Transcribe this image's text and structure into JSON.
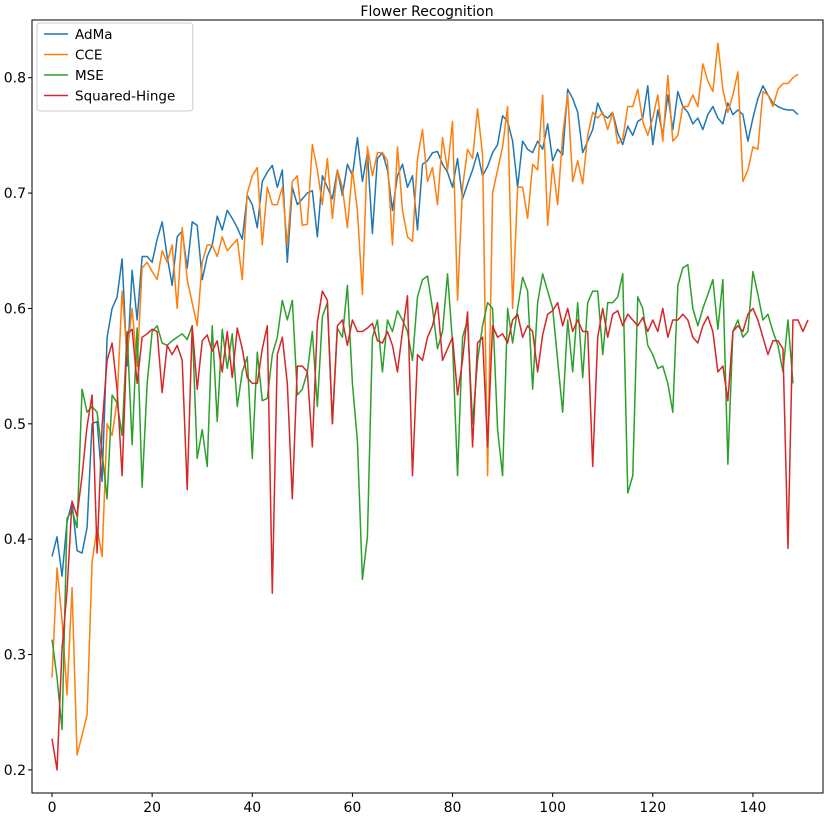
{
  "chart_data": {
    "type": "line",
    "title": "Flower Recognition",
    "xlabel": "",
    "ylabel": "",
    "xlim": [
      -4,
      154
    ],
    "ylim": [
      0.18,
      0.85
    ],
    "xticks": [
      0,
      20,
      40,
      60,
      80,
      100,
      120,
      140
    ],
    "yticks": [
      0.2,
      0.3,
      0.4,
      0.5,
      0.6,
      0.7,
      0.8
    ],
    "xtick_labels": [
      "0",
      "20",
      "40",
      "60",
      "80",
      "100",
      "120",
      "140"
    ],
    "ytick_labels": [
      "0.2",
      "0.3",
      "0.4",
      "0.5",
      "0.6",
      "0.7",
      "0.8"
    ],
    "grid": false,
    "legend_position": "top-left",
    "series": [
      {
        "name": "AdMa",
        "color": "#1f77b4",
        "values": [
          0.385,
          0.402,
          0.368,
          0.415,
          0.432,
          0.39,
          0.388,
          0.41,
          0.5,
          0.502,
          0.45,
          0.575,
          0.6,
          0.61,
          0.643,
          0.55,
          0.633,
          0.59,
          0.645,
          0.645,
          0.64,
          0.66,
          0.675,
          0.645,
          0.62,
          0.662,
          0.667,
          0.635,
          0.675,
          0.672,
          0.625,
          0.645,
          0.655,
          0.68,
          0.668,
          0.685,
          0.678,
          0.67,
          0.66,
          0.698,
          0.69,
          0.67,
          0.71,
          0.718,
          0.724,
          0.705,
          0.72,
          0.64,
          0.705,
          0.69,
          0.695,
          0.7,
          0.702,
          0.662,
          0.715,
          0.705,
          0.695,
          0.72,
          0.698,
          0.725,
          0.715,
          0.748,
          0.71,
          0.735,
          0.665,
          0.73,
          0.735,
          0.72,
          0.685,
          0.715,
          0.725,
          0.705,
          0.715,
          0.668,
          0.725,
          0.728,
          0.735,
          0.736,
          0.725,
          0.718,
          0.705,
          0.73,
          0.695,
          0.708,
          0.72,
          0.735,
          0.715,
          0.723,
          0.735,
          0.742,
          0.767,
          0.762,
          0.745,
          0.705,
          0.745,
          0.738,
          0.735,
          0.745,
          0.738,
          0.76,
          0.728,
          0.738,
          0.733,
          0.79,
          0.782,
          0.77,
          0.735,
          0.745,
          0.755,
          0.778,
          0.768,
          0.765,
          0.77,
          0.752,
          0.742,
          0.758,
          0.75,
          0.762,
          0.765,
          0.793,
          0.742,
          0.772,
          0.75,
          0.785,
          0.755,
          0.788,
          0.775,
          0.77,
          0.76,
          0.765,
          0.755,
          0.768,
          0.775,
          0.765,
          0.76,
          0.778,
          0.768,
          0.772,
          0.768,
          0.745,
          0.765,
          0.782,
          0.793,
          0.785,
          0.778,
          0.775,
          0.773,
          0.772,
          0.772,
          0.768
        ]
      },
      {
        "name": "CCE",
        "color": "#ff7f0e",
        "values": [
          0.28,
          0.375,
          0.33,
          0.265,
          0.358,
          0.213,
          0.23,
          0.248,
          0.38,
          0.41,
          0.385,
          0.5,
          0.49,
          0.52,
          0.615,
          0.56,
          0.6,
          0.55,
          0.635,
          0.64,
          0.632,
          0.625,
          0.65,
          0.64,
          0.655,
          0.6,
          0.67,
          0.625,
          0.605,
          0.585,
          0.64,
          0.655,
          0.655,
          0.645,
          0.662,
          0.65,
          0.655,
          0.66,
          0.625,
          0.7,
          0.715,
          0.722,
          0.655,
          0.705,
          0.69,
          0.69,
          0.705,
          0.655,
          0.71,
          0.715,
          0.672,
          0.673,
          0.742,
          0.72,
          0.69,
          0.73,
          0.678,
          0.72,
          0.705,
          0.67,
          0.72,
          0.685,
          0.612,
          0.74,
          0.715,
          0.735,
          0.735,
          0.728,
          0.655,
          0.74,
          0.685,
          0.662,
          0.658,
          0.73,
          0.755,
          0.71,
          0.722,
          0.69,
          0.748,
          0.72,
          0.762,
          0.607,
          0.705,
          0.738,
          0.73,
          0.773,
          0.733,
          0.455,
          0.7,
          0.72,
          0.74,
          0.775,
          0.6,
          0.705,
          0.705,
          0.678,
          0.725,
          0.72,
          0.785,
          0.672,
          0.725,
          0.69,
          0.75,
          0.786,
          0.71,
          0.728,
          0.708,
          0.75,
          0.77,
          0.765,
          0.77,
          0.755,
          0.77,
          0.743,
          0.747,
          0.775,
          0.775,
          0.79,
          0.762,
          0.75,
          0.765,
          0.785,
          0.745,
          0.802,
          0.745,
          0.75,
          0.775,
          0.775,
          0.785,
          0.775,
          0.812,
          0.797,
          0.788,
          0.83,
          0.79,
          0.77,
          0.785,
          0.805,
          0.71,
          0.72,
          0.74,
          0.738,
          0.788,
          0.785,
          0.775,
          0.79,
          0.795,
          0.795,
          0.8,
          0.803
        ]
      },
      {
        "name": "MSE",
        "color": "#2ca02c",
        "values": [
          0.313,
          0.28,
          0.235,
          0.418,
          0.425,
          0.41,
          0.53,
          0.51,
          0.515,
          0.51,
          0.475,
          0.435,
          0.525,
          0.518,
          0.49,
          0.58,
          0.482,
          0.583,
          0.445,
          0.535,
          0.58,
          0.585,
          0.57,
          0.568,
          0.572,
          0.575,
          0.578,
          0.573,
          0.585,
          0.47,
          0.495,
          0.463,
          0.585,
          0.502,
          0.582,
          0.548,
          0.578,
          0.515,
          0.545,
          0.558,
          0.47,
          0.562,
          0.52,
          0.522,
          0.56,
          0.575,
          0.607,
          0.59,
          0.607,
          0.525,
          0.53,
          0.545,
          0.58,
          0.515,
          0.593,
          0.605,
          0.5,
          0.583,
          0.575,
          0.62,
          0.535,
          0.485,
          0.365,
          0.402,
          0.575,
          0.59,
          0.545,
          0.59,
          0.58,
          0.598,
          0.59,
          0.58,
          0.555,
          0.61,
          0.625,
          0.628,
          0.6,
          0.565,
          0.58,
          0.63,
          0.57,
          0.455,
          0.575,
          0.59,
          0.5,
          0.555,
          0.585,
          0.605,
          0.6,
          0.495,
          0.455,
          0.6,
          0.57,
          0.6,
          0.627,
          0.615,
          0.53,
          0.605,
          0.63,
          0.615,
          0.6,
          0.555,
          0.51,
          0.59,
          0.545,
          0.605,
          0.54,
          0.605,
          0.615,
          0.615,
          0.56,
          0.605,
          0.605,
          0.61,
          0.63,
          0.44,
          0.455,
          0.61,
          0.6,
          0.568,
          0.56,
          0.548,
          0.55,
          0.535,
          0.51,
          0.62,
          0.635,
          0.638,
          0.6,
          0.585,
          0.6,
          0.612,
          0.625,
          0.582,
          0.625,
          0.465,
          0.58,
          0.59,
          0.575,
          0.58,
          0.632,
          0.612,
          0.59,
          0.595,
          0.58,
          0.568,
          0.545,
          0.59,
          0.535
        ]
      },
      {
        "name": "Squared-Hinge",
        "color": "#d62728",
        "values": [
          0.227,
          0.2,
          0.305,
          0.355,
          0.433,
          0.42,
          0.455,
          0.498,
          0.525,
          0.388,
          0.498,
          0.555,
          0.57,
          0.53,
          0.455,
          0.578,
          0.582,
          0.535,
          0.575,
          0.578,
          0.582,
          0.58,
          0.527,
          0.568,
          0.56,
          0.568,
          0.555,
          0.443,
          0.585,
          0.53,
          0.572,
          0.577,
          0.563,
          0.572,
          0.545,
          0.58,
          0.54,
          0.583,
          0.565,
          0.54,
          0.535,
          0.535,
          0.565,
          0.585,
          0.353,
          0.56,
          0.575,
          0.535,
          0.435,
          0.55,
          0.55,
          0.545,
          0.48,
          0.588,
          0.615,
          0.607,
          0.5,
          0.585,
          0.59,
          0.568,
          0.59,
          0.58,
          0.58,
          0.583,
          0.587,
          0.572,
          0.57,
          0.58,
          0.568,
          0.545,
          0.58,
          0.611,
          0.455,
          0.56,
          0.555,
          0.575,
          0.585,
          0.605,
          0.555,
          0.565,
          0.575,
          0.525,
          0.555,
          0.597,
          0.48,
          0.57,
          0.575,
          0.48,
          0.585,
          0.575,
          0.578,
          0.57,
          0.59,
          0.595,
          0.575,
          0.585,
          0.58,
          0.545,
          0.577,
          0.595,
          0.598,
          0.605,
          0.585,
          0.6,
          0.58,
          0.59,
          0.58,
          0.58,
          0.463,
          0.575,
          0.6,
          0.575,
          0.595,
          0.598,
          0.585,
          0.595,
          0.59,
          0.585,
          0.592,
          0.58,
          0.59,
          0.58,
          0.6,
          0.575,
          0.59,
          0.59,
          0.595,
          0.59,
          0.575,
          0.57,
          0.585,
          0.593,
          0.58,
          0.545,
          0.55,
          0.52,
          0.58,
          0.585,
          0.58,
          0.595,
          0.6,
          0.59,
          0.575,
          0.56,
          0.572,
          0.572,
          0.565,
          0.392,
          0.59,
          0.59,
          0.58,
          0.59
        ]
      }
    ]
  }
}
